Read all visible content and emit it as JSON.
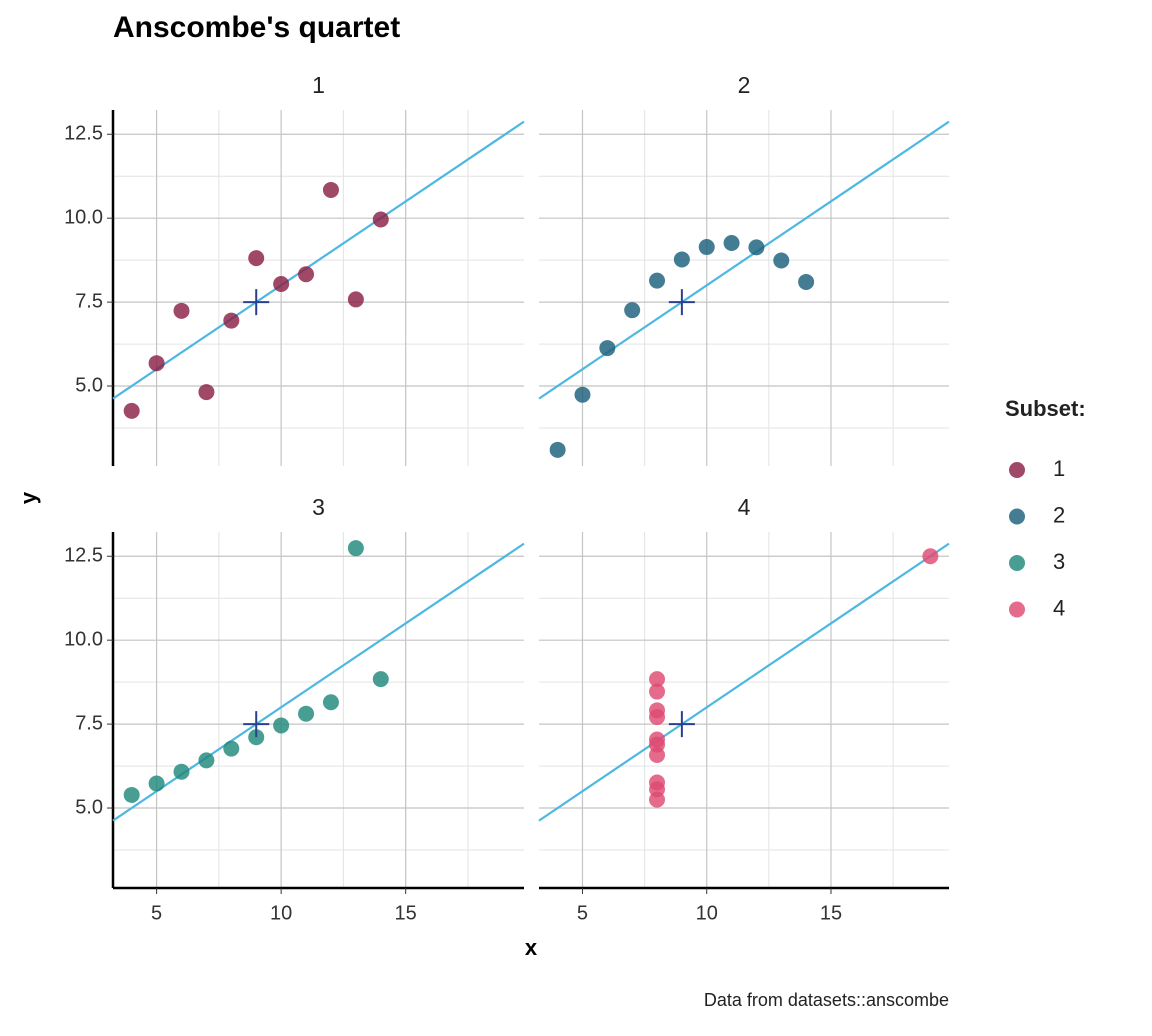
{
  "chart_data": {
    "type": "scatter",
    "title": "Anscombe's quartet",
    "x_label": "x",
    "y_label": "y",
    "caption": "Data from datasets::anscombe",
    "legend_title": "Subset:",
    "xlim": [
      3.25,
      19.75
    ],
    "ylim": [
      2.618,
      13.222
    ],
    "xticks": [
      5,
      10,
      15
    ],
    "yticks": [
      {
        "value": 5,
        "label": "5.0"
      },
      {
        "value": 7.5,
        "label": "7.5"
      },
      {
        "value": 10,
        "label": "10.0"
      },
      {
        "value": 12.5,
        "label": "12.5"
      }
    ],
    "xminor": [
      7.5,
      12.5,
      17.5
    ],
    "yminor": [
      3.75,
      6.25,
      8.75,
      11.25
    ],
    "grid": true,
    "fit": {
      "intercept": 3,
      "slope": 0.5,
      "color": "#4cb8e2"
    },
    "mean": {
      "x": 9,
      "y": 7.5,
      "color": "#2b3f8f"
    },
    "facets": [
      {
        "name": "1",
        "color": "#8a2046",
        "x": [
          10,
          8,
          13,
          9,
          11,
          14,
          6,
          4,
          12,
          7,
          5
        ],
        "y": [
          8.04,
          6.95,
          7.58,
          8.81,
          8.33,
          9.96,
          7.24,
          4.26,
          10.84,
          4.82,
          5.68
        ]
      },
      {
        "name": "2",
        "color": "#1b5f7c",
        "x": [
          10,
          8,
          13,
          9,
          11,
          14,
          6,
          4,
          12,
          7,
          5
        ],
        "y": [
          9.14,
          8.14,
          8.74,
          8.77,
          9.26,
          8.1,
          6.13,
          3.1,
          9.13,
          7.26,
          4.74
        ]
      },
      {
        "name": "3",
        "color": "#21897c",
        "x": [
          10,
          8,
          13,
          9,
          11,
          14,
          6,
          4,
          12,
          7,
          5
        ],
        "y": [
          7.46,
          6.77,
          12.74,
          7.11,
          7.81,
          8.84,
          6.08,
          5.39,
          8.15,
          6.42,
          5.73
        ]
      },
      {
        "name": "4",
        "color": "#de4a72",
        "x": [
          8,
          8,
          8,
          8,
          8,
          8,
          8,
          19,
          8,
          8,
          8
        ],
        "y": [
          6.58,
          5.76,
          7.71,
          8.84,
          8.47,
          7.04,
          5.25,
          12.5,
          5.56,
          7.91,
          6.89
        ]
      }
    ]
  }
}
